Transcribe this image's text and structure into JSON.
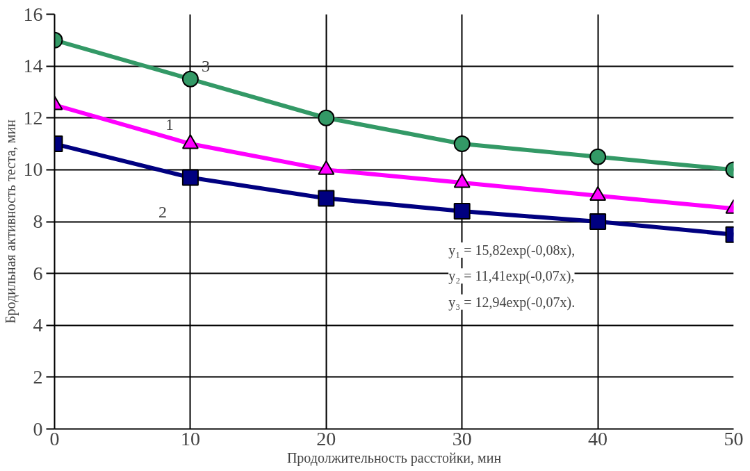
{
  "chart_data": {
    "type": "line",
    "xlabel": "Продолжительность расстойки, мин",
    "ylabel": "Бродильная активность теста, мин",
    "x": [
      0,
      10,
      20,
      30,
      40,
      50
    ],
    "series": [
      {
        "name": "3",
        "color": "#339966",
        "marker": "circle",
        "values": [
          15,
          13.5,
          12,
          11,
          10.5,
          10
        ]
      },
      {
        "name": "1",
        "color": "#ff00ff",
        "marker": "triangle",
        "values": [
          12.5,
          11,
          10,
          9.5,
          9,
          8.5
        ]
      },
      {
        "name": "2",
        "color": "#000080",
        "marker": "square",
        "values": [
          11,
          9.7,
          8.9,
          8.4,
          8,
          7.5
        ]
      }
    ],
    "annotations": [
      "y₁ = 15,82exp(-0,08x),",
      "y₂ = 11,41exp(-0,07x),",
      "y₃ = 12,94exp(-0,07x)."
    ],
    "xlim": [
      0,
      50
    ],
    "ylim": [
      0,
      16
    ],
    "xticks": [
      0,
      10,
      20,
      30,
      40,
      50
    ],
    "yticks": [
      0,
      2,
      4,
      6,
      8,
      10,
      12,
      14,
      16
    ],
    "grid": true,
    "line_style": "solid"
  }
}
